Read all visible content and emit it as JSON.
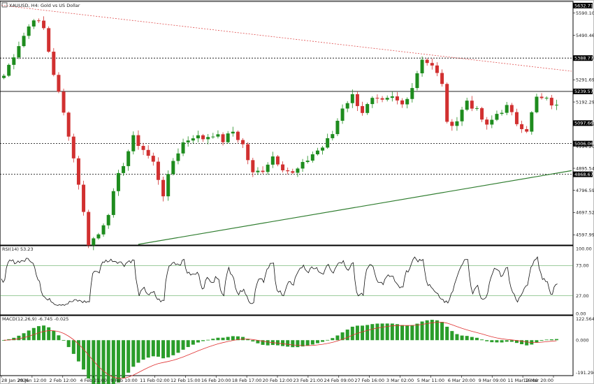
{
  "chart_data": [
    {
      "type": "candlestick",
      "panel": "price",
      "title": "XAUUSD, H4: Gold vs US Dollar",
      "y_ticks": [
        "5590.10",
        "5490.46",
        "5391.05",
        "5291.69",
        "5192.29",
        "5093.39",
        "4994.20",
        "4895.54",
        "4796.59",
        "4697.52",
        "4597.99"
      ],
      "ylim": [
        4555,
        5630
      ],
      "price_labels": [
        "5632.71",
        "5388.77",
        "5239.57",
        "5097.66",
        "5006.06",
        "4868.67"
      ],
      "horizontal_levels": [
        5388.77,
        5239.57,
        5006.06,
        4868.67
      ],
      "current_price": 5097.66,
      "trendlines": [
        {
          "name": "resistance",
          "color": "#e05050",
          "from": [
            0,
            5625
          ],
          "to": [
            1,
            5330
          ]
        },
        {
          "name": "support",
          "color": "#2f7d2f",
          "from": [
            0.24,
            4555
          ],
          "to": [
            1,
            4885
          ]
        }
      ],
      "anchors": [
        [
          0,
          5310
        ],
        [
          3,
          5450
        ],
        [
          6,
          5570
        ],
        [
          8,
          5520
        ],
        [
          10,
          5320
        ],
        [
          13,
          5050
        ],
        [
          15,
          4830
        ],
        [
          17,
          4560
        ],
        [
          19,
          4600
        ],
        [
          21,
          4700
        ],
        [
          23,
          4860
        ],
        [
          26,
          5030
        ],
        [
          28,
          4980
        ],
        [
          30,
          4920
        ],
        [
          32,
          4780
        ],
        [
          34,
          4930
        ],
        [
          36,
          5010
        ],
        [
          38,
          5040
        ],
        [
          40,
          5030
        ],
        [
          42,
          5050
        ],
        [
          44,
          5020
        ],
        [
          46,
          5060
        ],
        [
          48,
          5000
        ],
        [
          50,
          4870
        ],
        [
          52,
          4890
        ],
        [
          54,
          4950
        ],
        [
          56,
          4900
        ],
        [
          58,
          4870
        ],
        [
          60,
          4910
        ],
        [
          62,
          4960
        ],
        [
          64,
          4990
        ],
        [
          66,
          5050
        ],
        [
          68,
          5170
        ],
        [
          70,
          5220
        ],
        [
          72,
          5150
        ],
        [
          74,
          5200
        ],
        [
          76,
          5190
        ],
        [
          78,
          5210
        ],
        [
          80,
          5180
        ],
        [
          82,
          5260
        ],
        [
          84,
          5390
        ],
        [
          86,
          5350
        ],
        [
          88,
          5280
        ],
        [
          89,
          5090
        ],
        [
          91,
          5110
        ],
        [
          93,
          5200
        ],
        [
          95,
          5150
        ],
        [
          97,
          5080
        ],
        [
          99,
          5140
        ],
        [
          101,
          5170
        ],
        [
          103,
          5100
        ],
        [
          105,
          5070
        ],
        [
          107,
          5210
        ],
        [
          109,
          5200
        ],
        [
          111,
          5170
        ]
      ],
      "candle_count": 112
    },
    {
      "type": "line",
      "panel": "rsi",
      "title": "RSI(14) 53.23",
      "y_ticks": [
        "100.00",
        "73.00",
        "27.00",
        "0.00"
      ],
      "levels": [
        73,
        27
      ],
      "ylim": [
        0,
        100
      ],
      "color": "#111111"
    },
    {
      "type": "bar",
      "panel": "macd",
      "title": "MACD(12,26,9) -6.745 -0.025",
      "y_ticks": [
        "122.564",
        "0.000",
        "-191.294"
      ],
      "ylim": [
        -191.294,
        122.564
      ],
      "histogram_color": "#2a9d2a",
      "signal_color": "#e03030"
    }
  ],
  "x_labels": [
    "28 Jan 2026",
    "29 Jan 12:00",
    "2 Feb 12:00",
    "4 Feb 21:00",
    "9 Feb 10:00",
    "11 Feb 02:00",
    "12 Feb 15:00",
    "16 Feb 20:00",
    "18 Feb 17:00",
    "20 Feb 12:00",
    "23 Feb 21:00",
    "24 Feb 09:00",
    "27 Feb 16:00",
    "3 Mar 02:00",
    "5 Mar 11:00",
    "6 Mar 20:00",
    "9 Mar 09:00",
    "11 Mar 16:00",
    "12 Mar 20:00"
  ],
  "colors": {
    "bull": "#1e8c1e",
    "bear": "#d13030",
    "grid": "#000000",
    "level_label_bg": "#000000"
  },
  "toolbar": {
    "icon": "chart-icon"
  }
}
